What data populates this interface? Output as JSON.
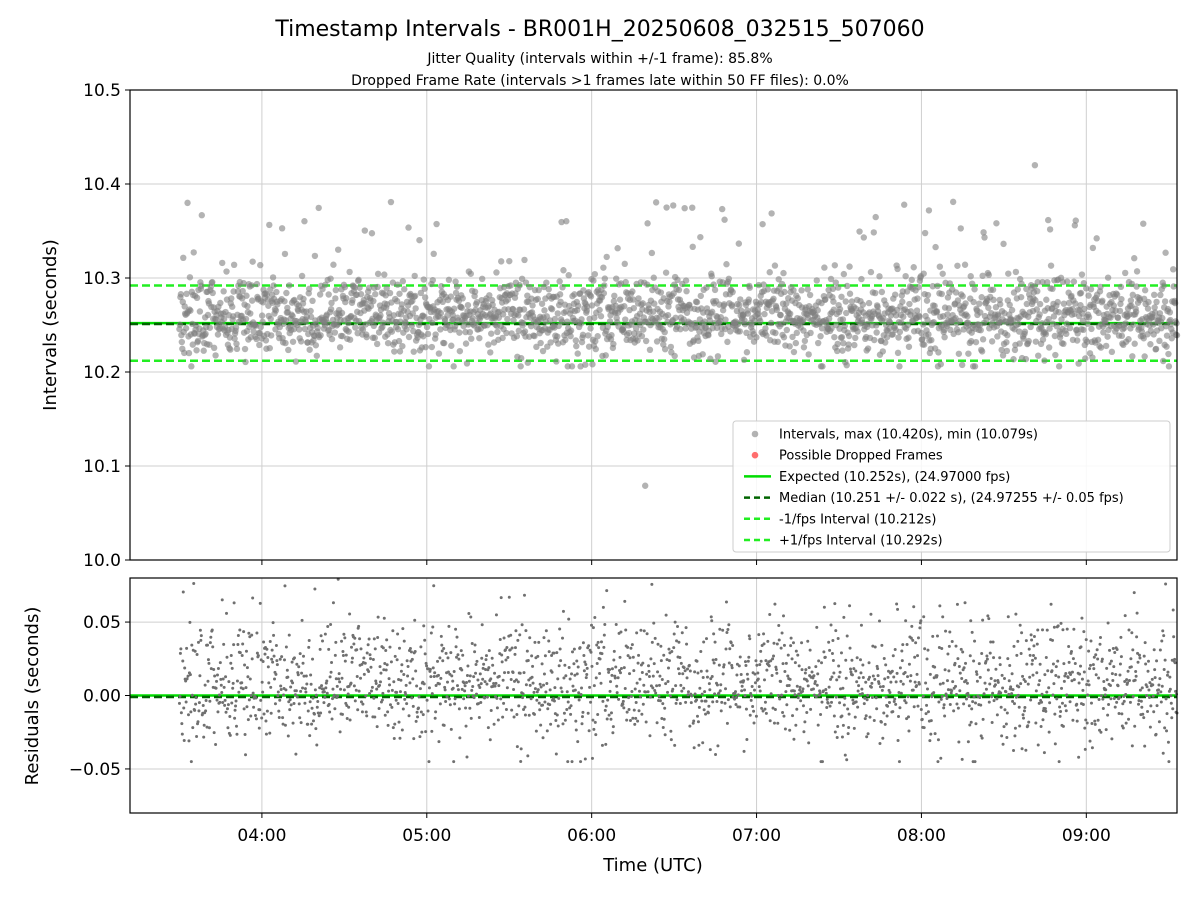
{
  "chart_data": [
    {
      "type": "scatter",
      "title": "Timestamp Intervals - BR001H_20250608_032515_507060",
      "subtitle_1": "Jitter Quality (intervals within +/-1 frame): 85.8%",
      "subtitle_2": "Dropped Frame Rate (intervals >1 frames late within 50 FF files): 0.0%",
      "ylabel": "Intervals (seconds)",
      "ylim": [
        10.0,
        10.5
      ],
      "xlim_hours": [
        3.2,
        9.55
      ],
      "yticks": [
        "10.0",
        "10.1",
        "10.2",
        "10.3",
        "10.4",
        "10.5"
      ],
      "ytick_values": [
        10.0,
        10.1,
        10.2,
        10.3,
        10.4,
        10.5
      ],
      "grid": true,
      "legend_position": "lower right",
      "legend": [
        "Intervals, max (10.420s), min (10.079s)",
        "Possible Dropped Frames",
        "Expected (10.252s), (24.97000 fps)",
        "Median (10.251 +/- 0.022 s), (24.97255 +/- 0.05 fps)",
        "-1/fps Interval (10.212s)",
        "+1/fps Interval (10.292s)"
      ],
      "series": [
        {
          "name": "Intervals, max (10.420s), min (10.079s)",
          "color": "#808080",
          "x_range_hours": [
            3.5,
            9.55
          ],
          "count": 2100,
          "median": 10.251,
          "std": 0.022,
          "max": 10.42,
          "min": 10.079
        },
        {
          "name": "Possible Dropped Frames",
          "color": "#ff5555",
          "values": []
        }
      ],
      "reference_lines": [
        {
          "name": "Expected (10.252s), (24.97000 fps)",
          "y": 10.252,
          "color": "#00dd00",
          "style": "solid"
        },
        {
          "name": "Median (10.251 +/- 0.022 s), (24.97255 +/- 0.05 fps)",
          "y": 10.251,
          "color": "#006400",
          "style": "dashed"
        },
        {
          "name": "-1/fps Interval (10.212s)",
          "y": 10.212,
          "color": "#22ee22",
          "style": "dashed"
        },
        {
          "name": "+1/fps Interval (10.292s)",
          "y": 10.292,
          "color": "#22ee22",
          "style": "dashed"
        }
      ]
    },
    {
      "type": "scatter",
      "ylabel": "Residuals (seconds)",
      "xlabel": "Time (UTC)",
      "ylim": [
        -0.08,
        0.08
      ],
      "yticks": [
        "−0.05",
        "0.00",
        "0.05"
      ],
      "ytick_values": [
        -0.05,
        0.0,
        0.05
      ],
      "xticks": [
        "04:00",
        "05:00",
        "06:00",
        "07:00",
        "08:00",
        "09:00"
      ],
      "xtick_hours": [
        4,
        5,
        6,
        7,
        8,
        9
      ],
      "grid": true,
      "series": [
        {
          "color": "#808080",
          "x_range_hours": [
            3.5,
            9.55
          ],
          "count": 2100
        }
      ],
      "reference_lines": [
        {
          "y": 0.0,
          "color": "#00dd00",
          "style": "solid"
        },
        {
          "y": -0.001,
          "color": "#006400",
          "style": "dashed"
        }
      ]
    }
  ]
}
